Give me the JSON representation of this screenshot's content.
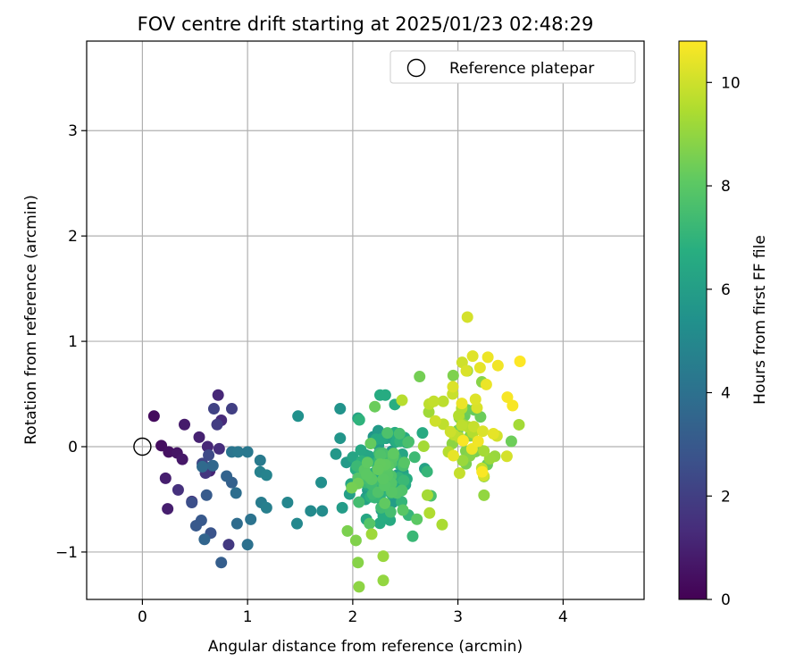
{
  "chart_data": {
    "type": "scatter",
    "title": "FOV centre drift starting at 2025/01/23 02:48:29",
    "xlabel": "Angular distance from reference (arcmin)",
    "ylabel": "Rotation from reference (arcmin)",
    "xlim": [
      -0.53,
      4.77
    ],
    "ylim": [
      -1.45,
      3.85
    ],
    "xticks": [
      0,
      1,
      2,
      3,
      4
    ],
    "xtick_labels": [
      "0",
      "1",
      "2",
      "3",
      "4"
    ],
    "yticks": [
      -1,
      0,
      1,
      2,
      3
    ],
    "ytick_labels": [
      "−1",
      "0",
      "1",
      "2",
      "3"
    ],
    "grid": true,
    "legend": {
      "placement": "top-right",
      "entries": [
        "Reference platepar"
      ]
    },
    "reference_point": {
      "x": 0,
      "y": 0
    },
    "colorbar": {
      "label": "Hours from first FF file",
      "range": [
        0,
        10.8
      ],
      "ticks": [
        0,
        2,
        4,
        6,
        8,
        10
      ],
      "tick_labels": [
        "0",
        "2",
        "4",
        "6",
        "8",
        "10"
      ],
      "colormap": "viridis"
    },
    "points": [
      [
        0.11,
        0.29,
        0.3
      ],
      [
        0.18,
        0.01,
        0.4
      ],
      [
        0.25,
        -0.05,
        0.5
      ],
      [
        0.33,
        -0.06,
        0.6
      ],
      [
        0.38,
        -0.12,
        0.7
      ],
      [
        0.4,
        0.21,
        0.8
      ],
      [
        0.22,
        -0.3,
        0.9
      ],
      [
        0.24,
        -0.59,
        0.9
      ],
      [
        0.54,
        0.09,
        1.0
      ],
      [
        0.64,
        -0.23,
        1.1
      ],
      [
        0.62,
        0.0,
        1.2
      ],
      [
        0.72,
        0.49,
        1.2
      ],
      [
        0.75,
        0.25,
        1.3
      ],
      [
        0.73,
        -0.02,
        1.4
      ],
      [
        0.34,
        -0.41,
        1.5
      ],
      [
        0.47,
        -0.52,
        1.6
      ],
      [
        0.6,
        -0.25,
        1.7
      ],
      [
        0.82,
        -0.93,
        1.8
      ],
      [
        0.71,
        0.21,
        1.9
      ],
      [
        0.85,
        0.36,
        2.0
      ],
      [
        0.68,
        0.36,
        2.1
      ],
      [
        0.57,
        -0.16,
        2.2
      ],
      [
        0.63,
        -0.08,
        2.4
      ],
      [
        0.47,
        -0.53,
        2.6
      ],
      [
        0.65,
        -0.82,
        2.8
      ],
      [
        0.56,
        -0.7,
        3.0
      ],
      [
        0.51,
        -0.75,
        3.0
      ],
      [
        0.61,
        -0.46,
        3.1
      ],
      [
        0.75,
        -1.1,
        3.2
      ],
      [
        0.85,
        -0.34,
        3.3
      ],
      [
        0.8,
        -0.28,
        3.4
      ],
      [
        0.59,
        -0.88,
        3.5
      ],
      [
        0.67,
        -0.18,
        3.6
      ],
      [
        0.57,
        -0.19,
        3.7
      ],
      [
        0.9,
        -0.73,
        3.8
      ],
      [
        0.89,
        -0.44,
        3.9
      ],
      [
        1.0,
        -0.93,
        4.0
      ],
      [
        1.03,
        -0.69,
        4.1
      ],
      [
        0.85,
        -0.05,
        4.2
      ],
      [
        0.91,
        -0.05,
        4.3
      ],
      [
        1.0,
        -0.05,
        4.3
      ],
      [
        1.12,
        -0.13,
        4.4
      ],
      [
        1.13,
        -0.53,
        4.5
      ],
      [
        1.18,
        -0.58,
        4.6
      ],
      [
        1.12,
        -0.24,
        4.7
      ],
      [
        1.18,
        -0.27,
        4.8
      ],
      [
        1.38,
        -0.53,
        4.9
      ],
      [
        1.47,
        -0.73,
        5.0
      ],
      [
        1.6,
        -0.61,
        5.1
      ],
      [
        1.71,
        -0.61,
        5.2
      ],
      [
        1.7,
        -0.34,
        5.3
      ],
      [
        1.48,
        0.29,
        5.4
      ],
      [
        1.88,
        0.36,
        5.5
      ],
      [
        1.88,
        0.08,
        5.6
      ],
      [
        1.84,
        -0.07,
        5.7
      ],
      [
        1.94,
        -0.15,
        5.8
      ],
      [
        1.9,
        -0.58,
        5.9
      ],
      [
        1.97,
        -0.45,
        6.0
      ],
      [
        2.06,
        -0.32,
        6.1
      ],
      [
        2.12,
        -0.5,
        6.2
      ],
      [
        2.0,
        -0.1,
        6.3
      ],
      [
        2.05,
        0.27,
        6.3
      ],
      [
        2.13,
        -0.69,
        6.4
      ],
      [
        2.22,
        0.07,
        6.5
      ],
      [
        2.26,
        0.49,
        6.6
      ],
      [
        2.31,
        0.49,
        6.6
      ],
      [
        2.4,
        0.4,
        6.7
      ],
      [
        2.31,
        -0.27,
        6.8
      ],
      [
        2.38,
        -0.3,
        6.9
      ],
      [
        2.45,
        0.05,
        7.0
      ],
      [
        2.53,
        -0.65,
        7.1
      ],
      [
        2.57,
        -0.85,
        7.2
      ],
      [
        2.19,
        -0.45,
        7.3
      ],
      [
        2.27,
        -0.58,
        7.4
      ],
      [
        2.36,
        -0.62,
        7.5
      ],
      [
        2.48,
        -0.18,
        7.6
      ],
      [
        2.33,
        0.13,
        7.7
      ],
      [
        2.42,
        -0.44,
        7.8
      ],
      [
        2.49,
        -0.15,
        7.9
      ],
      [
        2.18,
        -0.31,
        8.0
      ],
      [
        2.27,
        -0.2,
        8.0
      ],
      [
        2.14,
        -0.15,
        8.1
      ],
      [
        2.17,
        0.03,
        8.2
      ],
      [
        2.21,
        0.38,
        8.3
      ],
      [
        2.05,
        -0.35,
        8.4
      ],
      [
        1.99,
        -0.39,
        8.5
      ],
      [
        1.95,
        -0.8,
        8.6
      ],
      [
        2.03,
        -0.89,
        8.7
      ],
      [
        2.05,
        -1.1,
        8.8
      ],
      [
        2.06,
        -1.33,
        8.9
      ],
      [
        2.29,
        -1.27,
        9.0
      ],
      [
        2.29,
        -1.04,
        9.1
      ],
      [
        2.18,
        -0.83,
        9.2
      ],
      [
        2.71,
        -0.46,
        9.3
      ],
      [
        2.85,
        -0.74,
        9.4
      ],
      [
        2.73,
        -0.63,
        9.5
      ],
      [
        2.91,
        -0.05,
        9.6
      ],
      [
        2.86,
        0.43,
        9.7
      ],
      [
        2.77,
        0.43,
        9.8
      ],
      [
        2.95,
        0.5,
        9.9
      ],
      [
        3.04,
        0.8,
        10.0
      ],
      [
        3.09,
        1.23,
        10.1
      ],
      [
        3.08,
        0.72,
        10.2
      ],
      [
        3.14,
        0.86,
        10.3
      ],
      [
        3.21,
        0.75,
        10.4
      ],
      [
        3.27,
        0.59,
        10.5
      ],
      [
        3.38,
        0.77,
        10.6
      ],
      [
        3.47,
        0.47,
        10.7
      ],
      [
        3.52,
        0.39,
        10.7
      ],
      [
        3.59,
        0.81,
        10.8
      ]
    ],
    "dense_cluster": {
      "x_center": 2.3,
      "y_center": -0.25,
      "x_spread": 0.28,
      "y_spread": 0.33,
      "count": 120,
      "hours_range": [
        5.6,
        8.2
      ]
    },
    "late_cluster": {
      "x_center": 3.1,
      "y_center": 0.15,
      "x_spread": 0.33,
      "y_spread": 0.42,
      "count": 60,
      "hours_range": [
        8.2,
        10.8
      ]
    }
  }
}
